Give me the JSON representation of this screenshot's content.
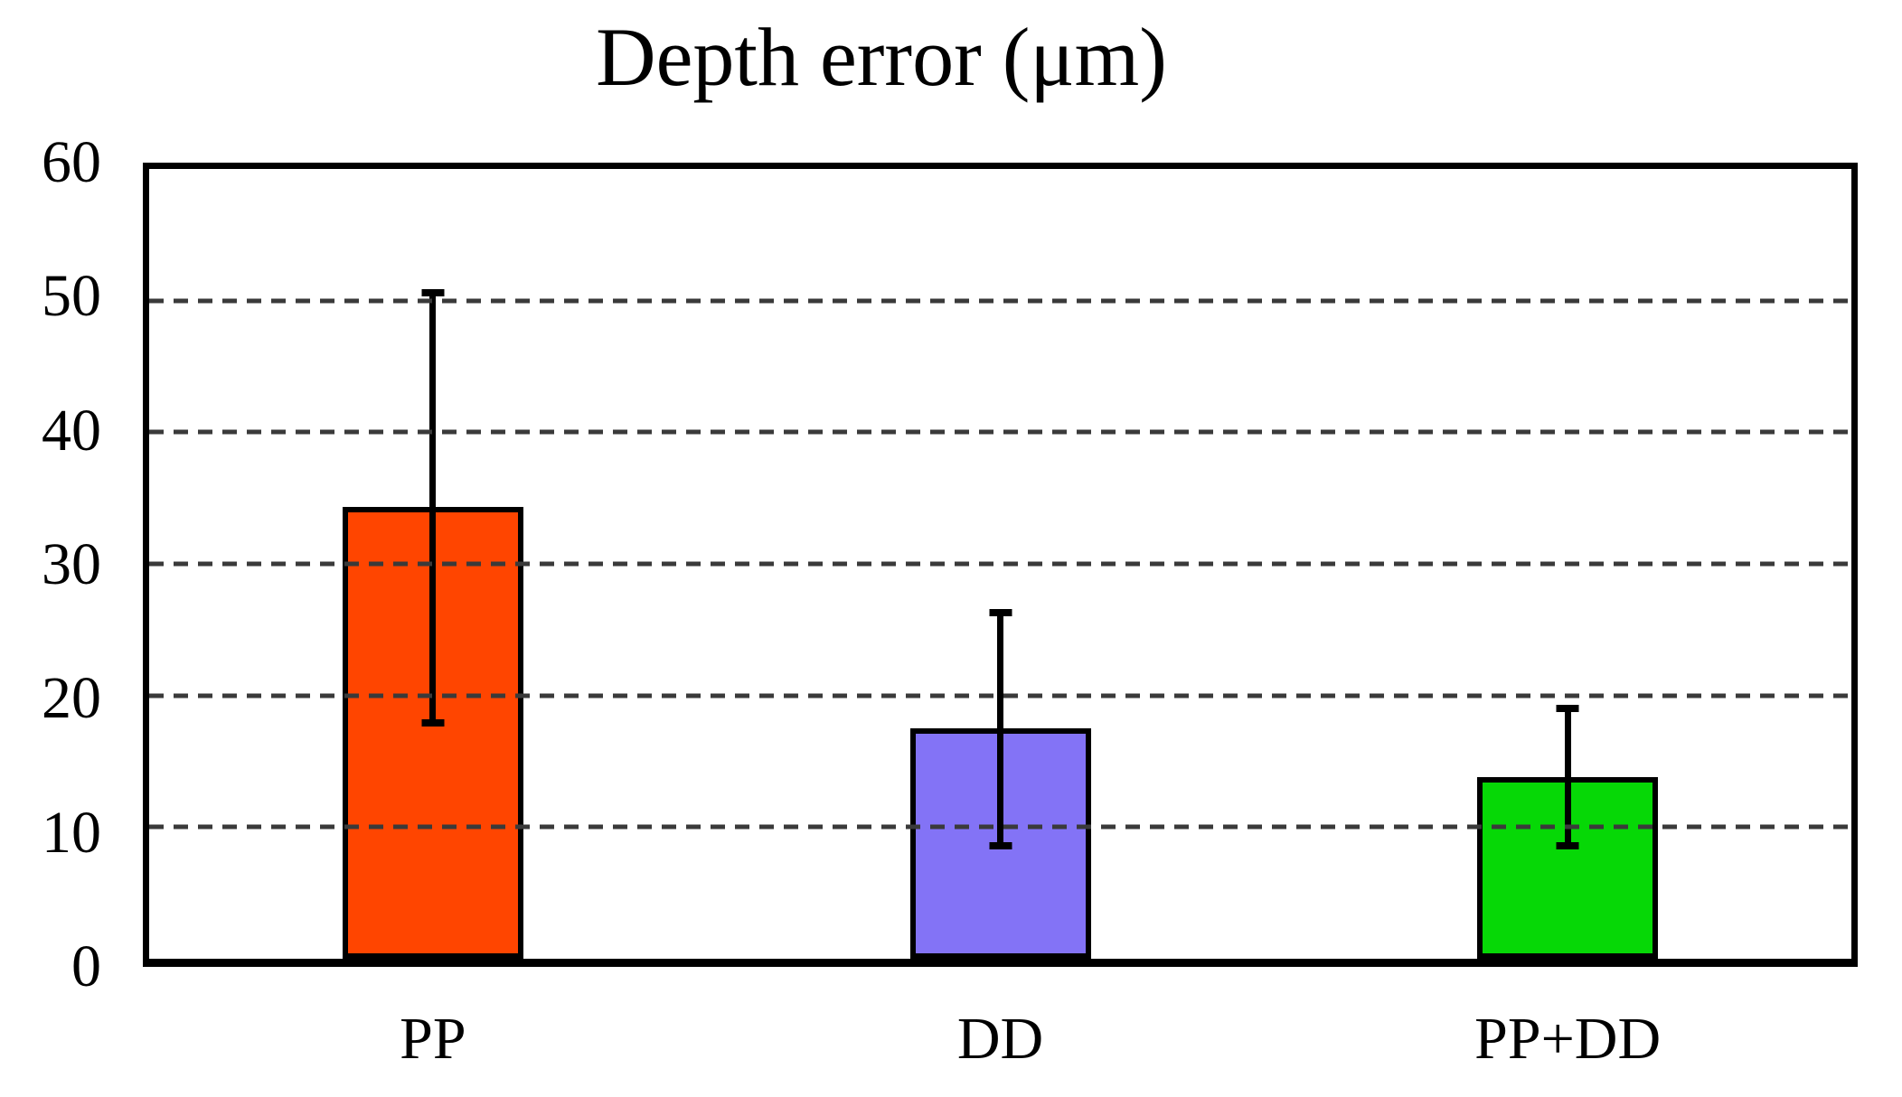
{
  "chart_data": {
    "type": "bar",
    "title": "Depth error (μm)",
    "categories": [
      "PP",
      "DD",
      "PP+DD"
    ],
    "values": [
      34.3,
      17.5,
      13.8
    ],
    "error_bars": {
      "low": [
        17.9,
        8.6,
        8.6
      ],
      "high": [
        50.6,
        26.3,
        19.0
      ]
    },
    "bar_colors": [
      "#FF4500",
      "#8373F6",
      "#06D806"
    ],
    "bar_border_color": "#000000",
    "xlabel": "",
    "ylabel": "",
    "ylim": [
      0,
      60
    ],
    "yticks": [
      0,
      10,
      20,
      30,
      40,
      50,
      60
    ],
    "gridlines": [
      10,
      20,
      30,
      40,
      50
    ],
    "grid_style": "dashed",
    "grid_color": "#3a3a3a",
    "frame_color": "#000000",
    "legend": "none",
    "background_color": "#ffffff"
  }
}
